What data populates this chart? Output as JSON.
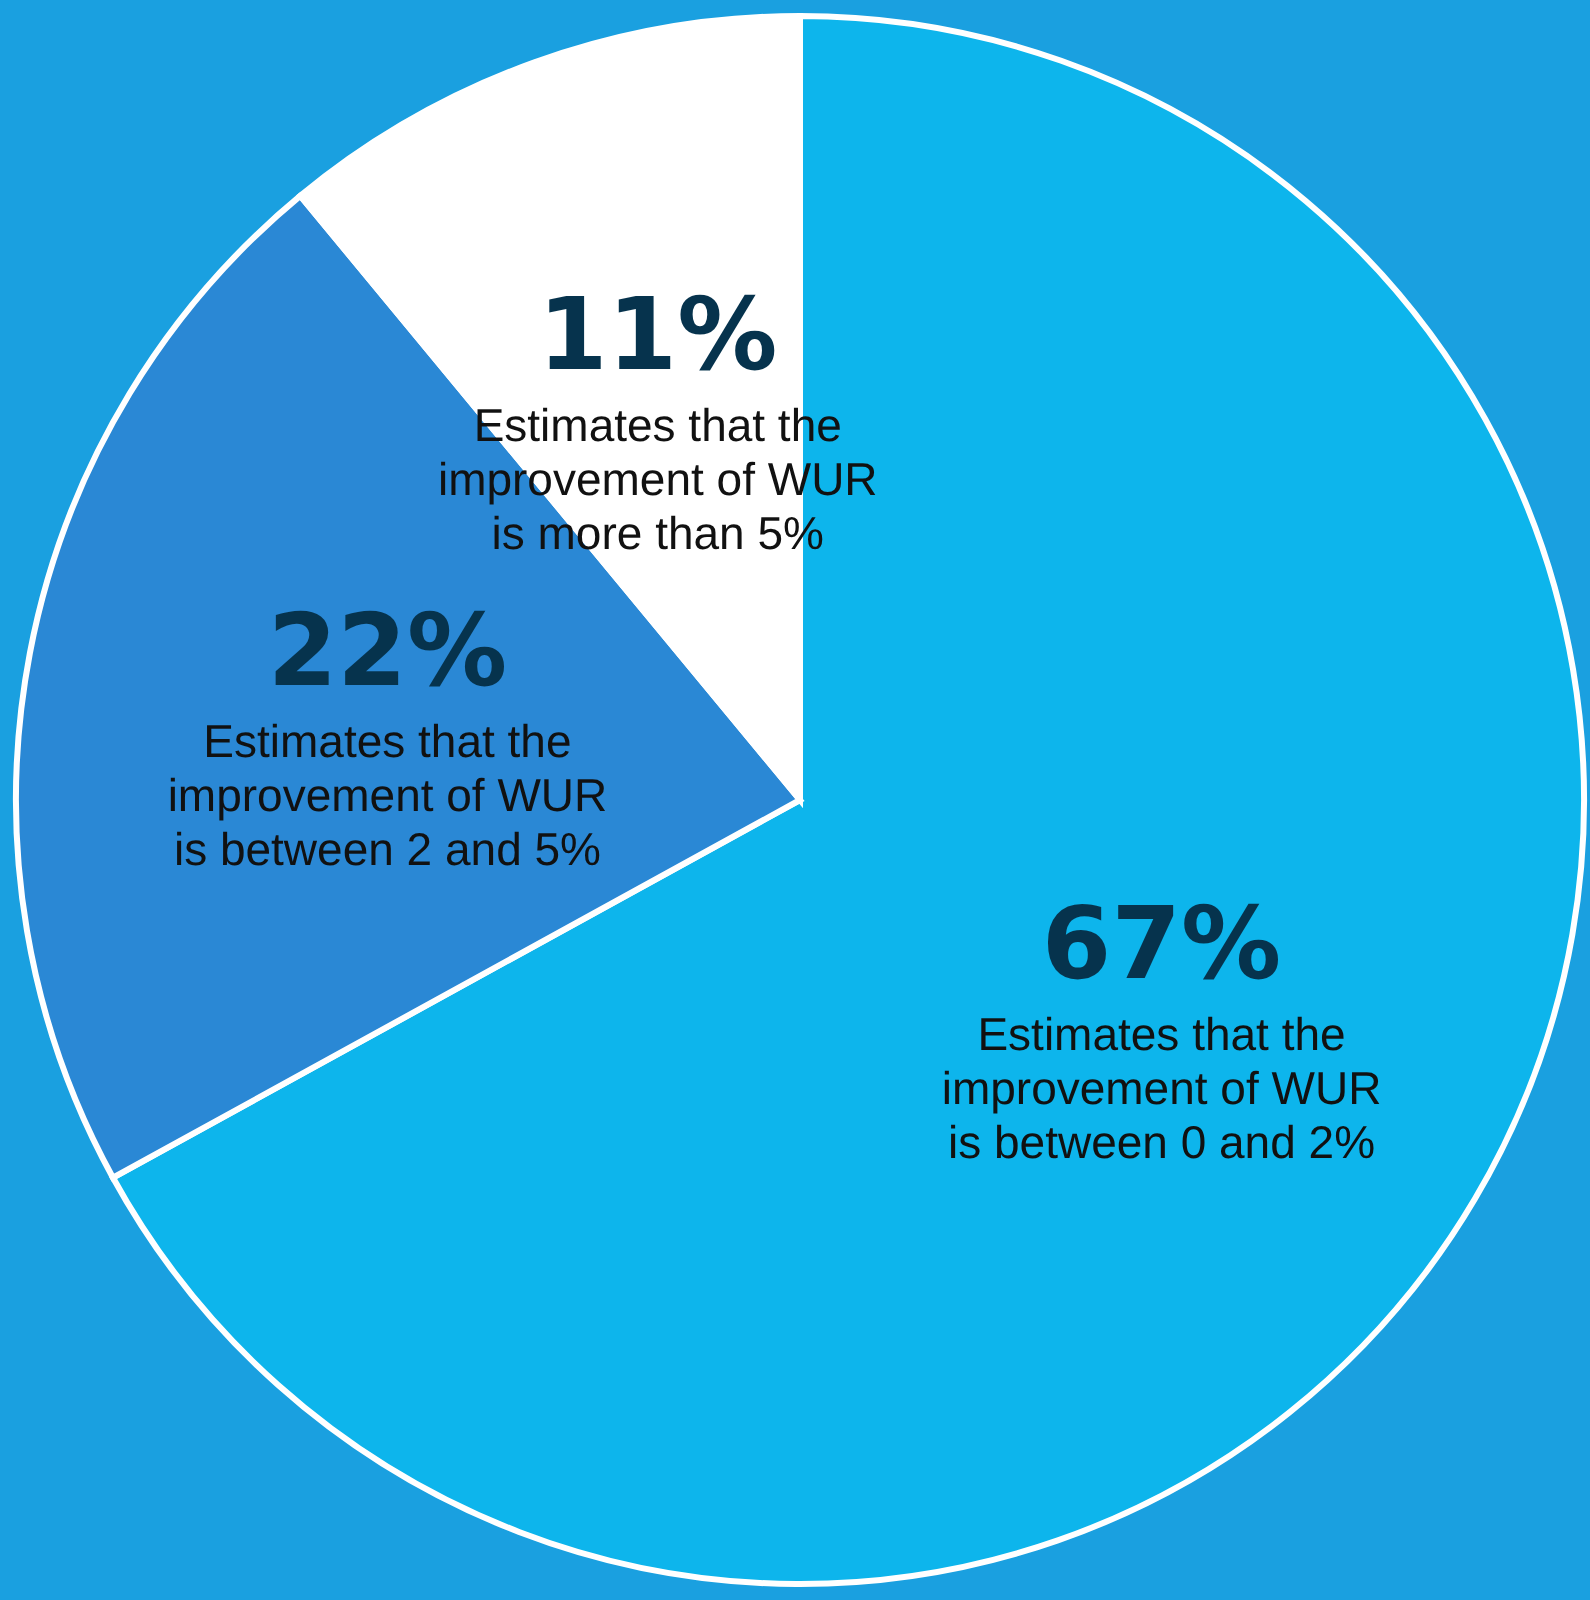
{
  "chart_data": {
    "type": "pie",
    "categories": [
      "Estimates that the improvement of WUR is between 0 and 2%",
      "Estimates that the improvement of WUR is between 2 and 5%",
      "Estimates that the improvement of WUR is more than 5%"
    ],
    "values": [
      67,
      22,
      11
    ],
    "value_labels": [
      "67%",
      "22%",
      "11%"
    ],
    "colors": [
      "#0db5ec",
      "#2a88d5",
      "#ffffff"
    ]
  }
}
